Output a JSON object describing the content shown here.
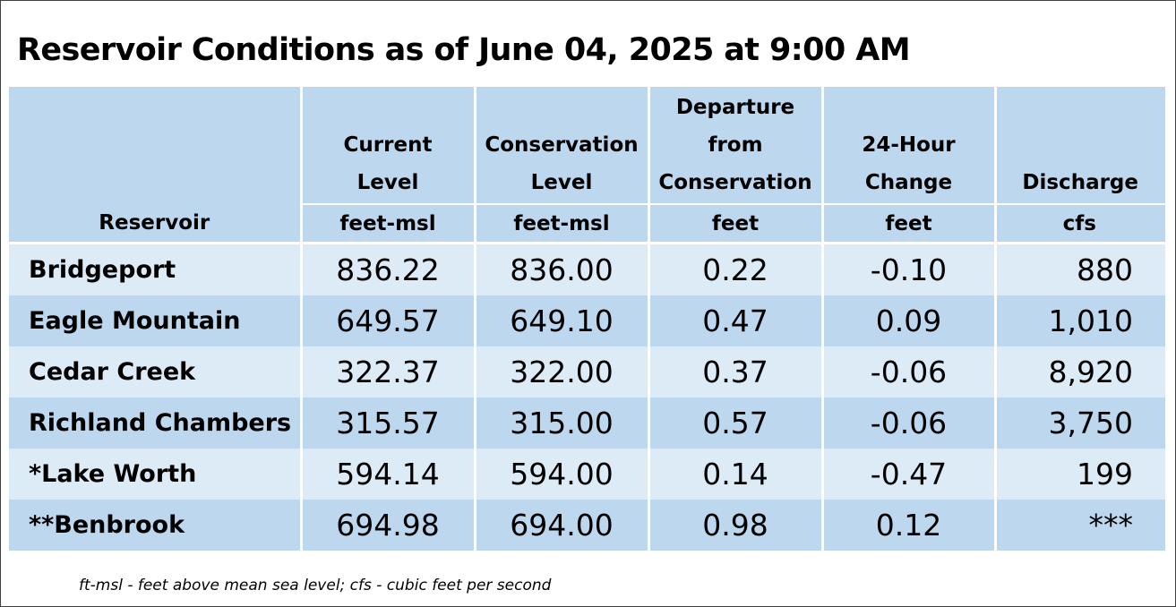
{
  "title": "Reservoir Conditions as of June 04, 2025 at 9:00 AM",
  "headers": {
    "reservoir": "Reservoir",
    "current_level": {
      "line1": "Current",
      "line2": "Level",
      "unit": "feet-msl"
    },
    "conservation_level": {
      "line1": "Conservation",
      "line2": "Level",
      "unit": "feet-msl"
    },
    "departure": {
      "line1": "Departure",
      "line2": "from",
      "line3": "Conservation",
      "unit": "feet"
    },
    "change_24h": {
      "line1": "24-Hour",
      "line2": "Change",
      "unit": "feet"
    },
    "discharge": {
      "line1": "Discharge",
      "unit": "cfs"
    }
  },
  "rows": [
    {
      "name": "Bridgeport",
      "current": "836.22",
      "conservation": "836.00",
      "departure": "0.22",
      "change": "-0.10",
      "discharge": "880"
    },
    {
      "name": "Eagle Mountain",
      "current": "649.57",
      "conservation": "649.10",
      "departure": "0.47",
      "change": "0.09",
      "discharge": "1,010"
    },
    {
      "name": "Cedar Creek",
      "current": "322.37",
      "conservation": "322.00",
      "departure": "0.37",
      "change": "-0.06",
      "discharge": "8,920"
    },
    {
      "name": "Richland Chambers",
      "current": "315.57",
      "conservation": "315.00",
      "departure": "0.57",
      "change": "-0.06",
      "discharge": "3,750"
    },
    {
      "name": "*Lake Worth",
      "current": "594.14",
      "conservation": "594.00",
      "departure": "0.14",
      "change": "-0.47",
      "discharge": "199"
    },
    {
      "name": "**Benbrook",
      "current": "694.98",
      "conservation": "694.00",
      "departure": "0.98",
      "change": "0.12",
      "discharge": "***"
    }
  ],
  "footnote": "ft-msl - feet above mean sea level; cfs - cubic feet per second",
  "colors": {
    "header_bg": "#bdd7ee",
    "row_light": "#ddebf7",
    "row_dark": "#bdd7ee"
  }
}
